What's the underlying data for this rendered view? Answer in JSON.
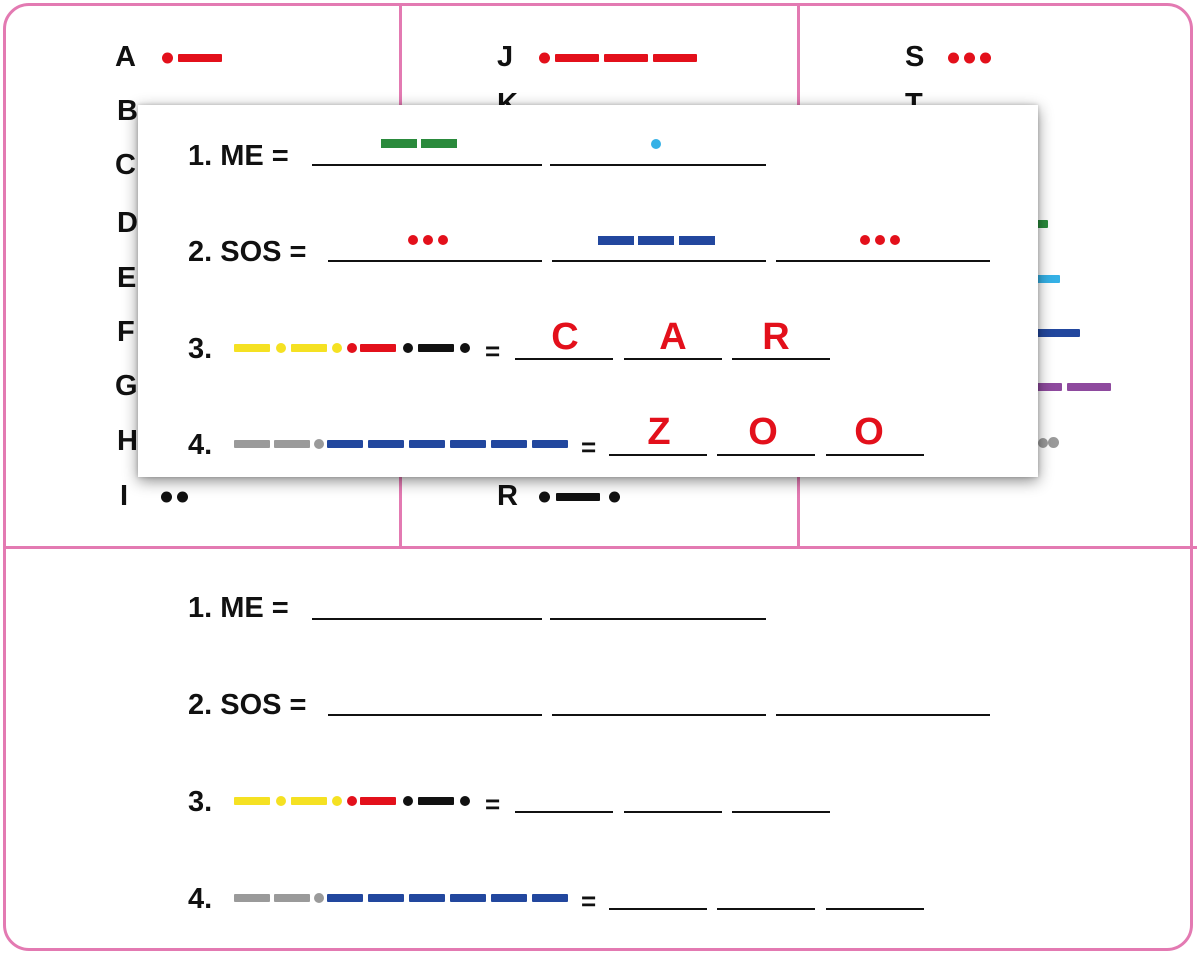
{
  "colors": {
    "border": "#e37ab2",
    "red": "#e3101b",
    "green": "#2a8a3c",
    "light_blue": "#35b1e6",
    "dark_blue": "#22479e",
    "yellow": "#f5e122",
    "black": "#111111",
    "gray": "#9a9a9a",
    "purple": "#8e4a9e"
  },
  "alphabet": [
    {
      "letter": "A",
      "code": [
        ".",
        "-"
      ]
    },
    {
      "letter": "B",
      "code": []
    },
    {
      "letter": "C",
      "code": []
    },
    {
      "letter": "D",
      "code": []
    },
    {
      "letter": "E",
      "code": []
    },
    {
      "letter": "F",
      "code": []
    },
    {
      "letter": "G",
      "code": []
    },
    {
      "letter": "H",
      "code": []
    },
    {
      "letter": "I",
      "code": [
        ".",
        "."
      ]
    },
    {
      "letter": "J",
      "code": [
        ".",
        "-",
        "-",
        "-"
      ]
    },
    {
      "letter": "K",
      "code": []
    },
    {
      "letter": "R",
      "code": [
        ".",
        "-",
        "."
      ]
    },
    {
      "letter": "S",
      "code": [
        ".",
        ".",
        "."
      ]
    },
    {
      "letter": "T",
      "code": []
    }
  ],
  "partial_codes_right": [
    "green-dash",
    "light-blue-dash",
    "dark-blue-dash",
    "purple-dash-dash",
    "gray-dot"
  ],
  "popup": {
    "q1": {
      "label": "1. ME =",
      "answers": [
        "--",
        "."
      ]
    },
    "q2": {
      "label": "2. SOS =",
      "answers": [
        "...",
        "---",
        "..."
      ]
    },
    "q3": {
      "label": "3.",
      "eq": "=",
      "answers": [
        "C",
        "A",
        "R"
      ]
    },
    "q4": {
      "label": "4.",
      "eq": "=",
      "answers": [
        "Z",
        "O",
        "O"
      ]
    }
  },
  "worksheet": {
    "q1": {
      "label": "1. ME ="
    },
    "q2": {
      "label": "2. SOS ="
    },
    "q3": {
      "label": "3.",
      "eq": "="
    },
    "q4": {
      "label": "4.",
      "eq": "="
    }
  }
}
